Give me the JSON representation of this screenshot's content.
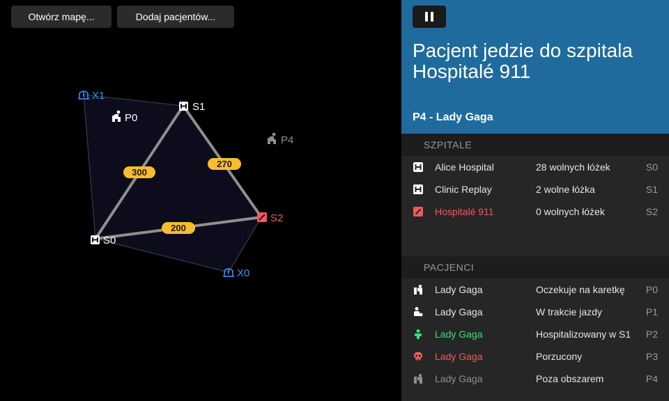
{
  "toolbar": {
    "open_map": "Otwórz mapę...",
    "add_patients": "Dodaj pacjentów..."
  },
  "map": {
    "nodes": {
      "X1": {
        "label": "X1",
        "icon": "ambulance-station-icon",
        "color": "#3b8ff0"
      },
      "X0": {
        "label": "X0",
        "icon": "ambulance-station-icon",
        "color": "#3b8ff0"
      },
      "S0": {
        "label": "S0",
        "icon": "hospital-icon",
        "color": "#ffffff"
      },
      "S1": {
        "label": "S1",
        "icon": "hospital-icon",
        "color": "#ffffff"
      },
      "S2": {
        "label": "S2",
        "icon": "hospital-full-icon",
        "color": "#f05a5a"
      },
      "P0": {
        "label": "P0",
        "icon": "patient-waiting-icon",
        "color": "#ffffff"
      },
      "P4": {
        "label": "P4",
        "icon": "patient-waiting-icon",
        "color": "#8e8e8e"
      }
    },
    "edges": {
      "S0_S1": "300",
      "S1_S2": "270",
      "S0_S2": "200"
    },
    "edge_badge_color": "#f7bd2f"
  },
  "panel": {
    "title": "Pacjent jedzie do szpitala Hospitalé 911",
    "subtitle": "P4 - Lady Gaga",
    "header_color": "#1f6b9e",
    "hospitals_header": "SZPITALE",
    "hospitals": [
      {
        "name": "Alice Hospital",
        "info": "28 wolnych łóżek",
        "code": "S0",
        "icon": "hospital-icon"
      },
      {
        "name": "Clinic Replay",
        "info": "2 wolne łóżka",
        "code": "S1",
        "icon": "hospital-icon"
      },
      {
        "name": "Hospitalé 911",
        "info": "0 wolnych łóżek",
        "code": "S2",
        "icon": "hospital-full-icon"
      }
    ],
    "patients_header": "PACJENCI",
    "patients": [
      {
        "name": "Lady Gaga",
        "info": "Oczekuje na karetkę",
        "code": "P0",
        "icon": "patient-waiting-icon"
      },
      {
        "name": "Lady Gaga",
        "info": "W trakcie jazdy",
        "code": "P1",
        "icon": "patient-in-transit-icon"
      },
      {
        "name": "Lady Gaga",
        "info": "Hospitalizowany w S1",
        "code": "P2",
        "icon": "patient-hospitalized-icon"
      },
      {
        "name": "Lady Gaga",
        "info": "Porzucony",
        "code": "P3",
        "icon": "skull-icon"
      },
      {
        "name": "Lady Gaga",
        "info": "Poza obszarem",
        "code": "P4",
        "icon": "patient-out-of-area-icon"
      }
    ]
  }
}
